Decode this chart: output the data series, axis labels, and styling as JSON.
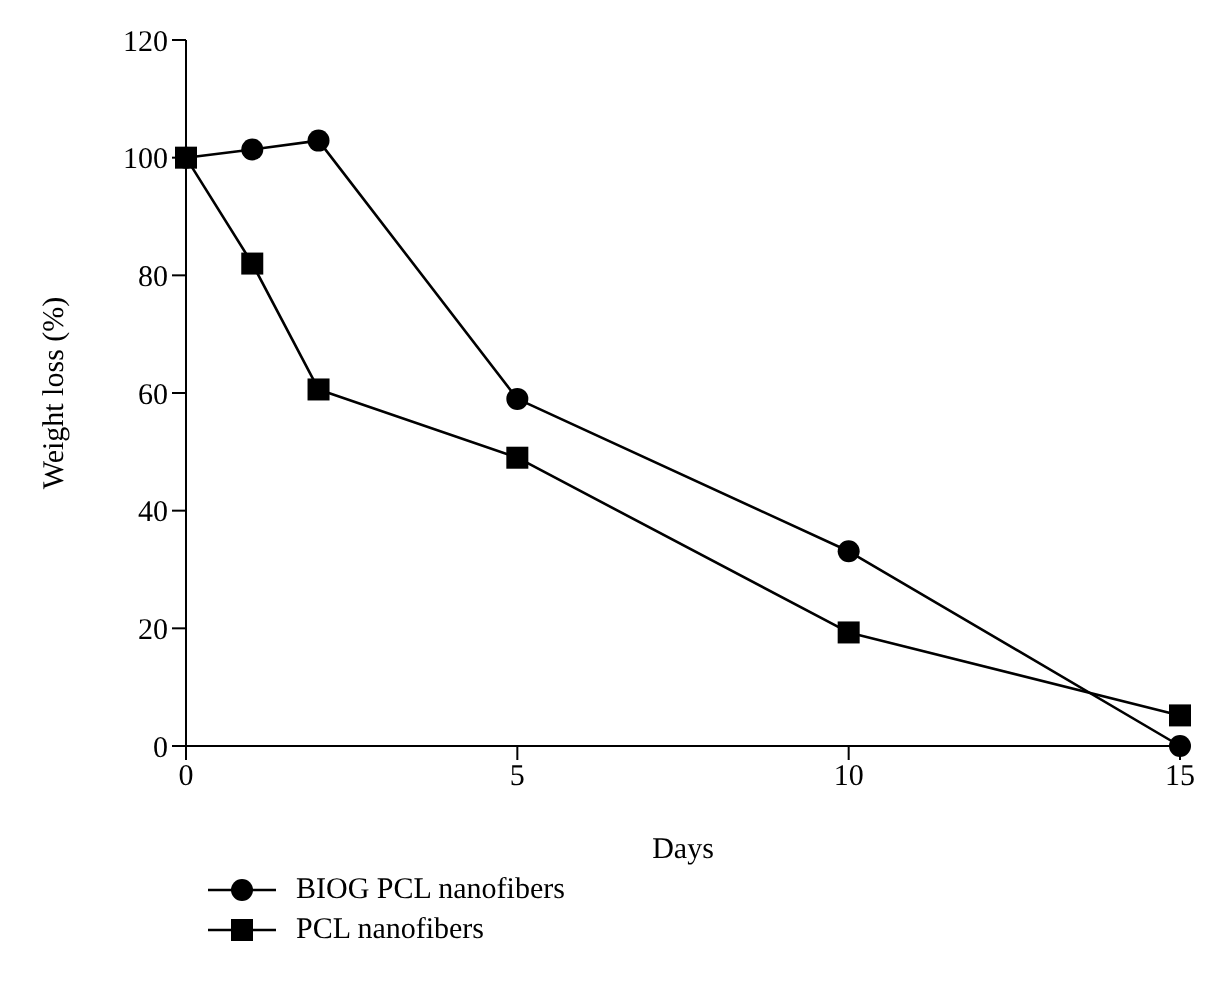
{
  "chart_data": {
    "type": "line",
    "xlabel": "Days",
    "ylabel": "Weight loss (%)",
    "x": [
      0,
      1,
      2,
      5,
      10,
      15
    ],
    "series": [
      {
        "name": "BIOG PCL nanofibers",
        "color": "#000000",
        "marker": "circle",
        "values": [
          100,
          101.4,
          102.9,
          59,
          33.1,
          0
        ]
      },
      {
        "name": "PCL nanofibers",
        "color": "#000000",
        "marker": "square",
        "values": [
          100,
          82,
          60.6,
          49,
          19.3,
          5.2
        ]
      }
    ],
    "xlim": [
      0,
      15
    ],
    "xticks": [
      0,
      5,
      10,
      15
    ],
    "ylim": [
      0,
      120
    ],
    "yticks": [
      0,
      20,
      40,
      60,
      80,
      100,
      120
    ],
    "grid": false,
    "legend": "bottom left",
    "line_style": "solid"
  }
}
